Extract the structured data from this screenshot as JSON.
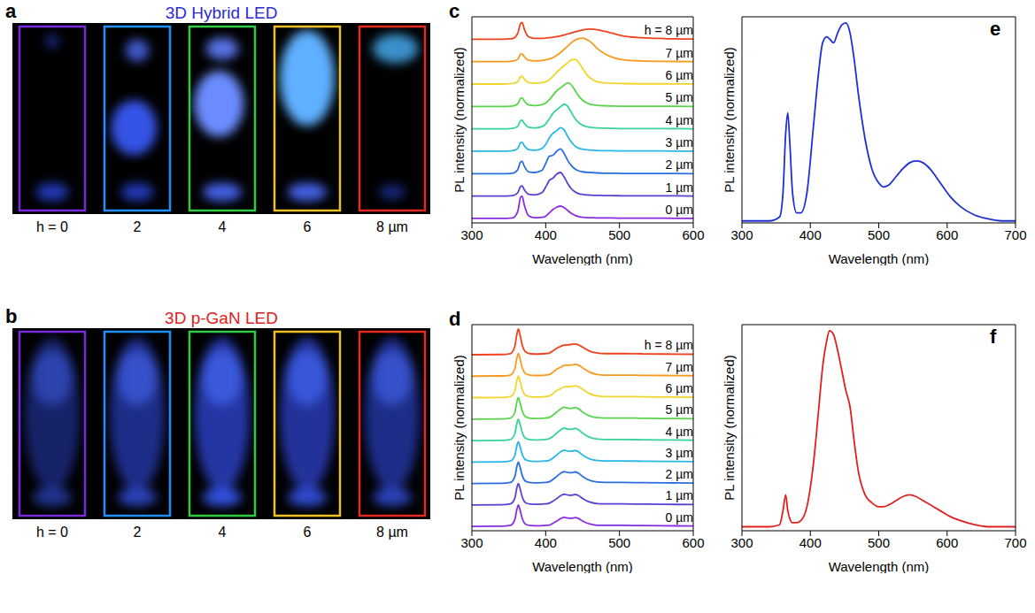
{
  "images": [
    {
      "panel_label": "a",
      "title": "3D Hybrid LED",
      "color": "#2b2bd6",
      "colors": [
        "#7a2be0",
        "#1e90ff",
        "#2ecc40",
        "#f0c020",
        "#e8281e"
      ],
      "labels": [
        "h = 0",
        "2",
        "4",
        "6",
        "8 µm"
      ]
    },
    {
      "panel_label": "b",
      "title": "3D p-GaN LED",
      "color": "#e0201e",
      "colors": [
        "#7a2be0",
        "#1e90ff",
        "#2ecc40",
        "#f0c020",
        "#e8281e"
      ],
      "labels": [
        "h = 0",
        "2",
        "4",
        "6",
        "8 µm"
      ]
    }
  ],
  "chart_data": [
    {
      "panel_label": "c",
      "type": "line",
      "x_label": "Wavelength (nm)",
      "y_label": "PL intensity (normalized)",
      "xlim": [
        300,
        600
      ],
      "xticks": [
        300,
        400,
        500,
        600
      ],
      "ylim": [
        -0.2,
        9.0
      ],
      "tick_labels": "x",
      "x": [
        300,
        340,
        355,
        362,
        366,
        368,
        371,
        377,
        385,
        395,
        400,
        405,
        410,
        415,
        420,
        425,
        430,
        435,
        440,
        445,
        450,
        455,
        460,
        465,
        470,
        480,
        490,
        505,
        530,
        560,
        600
      ],
      "series": [
        {
          "name": "0 µm",
          "color": "#8a2be2",
          "values": [
            0,
            0,
            0.02,
            0.3,
            0.95,
            1.0,
            0.6,
            0.12,
            0.03,
            0.05,
            0.1,
            0.25,
            0.4,
            0.5,
            0.55,
            0.48,
            0.35,
            0.22,
            0.13,
            0.08,
            0.05,
            0.04,
            0.03,
            0.03,
            0.02,
            0.02,
            0.02,
            0.01,
            0.01,
            0.01,
            0
          ]
        },
        {
          "name": "1 µm",
          "color": "#5b3fd1",
          "values": [
            1,
            1,
            1.02,
            1.14,
            1.43,
            1.45,
            1.28,
            1.08,
            1.05,
            1.15,
            1.4,
            1.7,
            1.8,
            1.98,
            2.05,
            1.85,
            1.55,
            1.32,
            1.18,
            1.1,
            1.07,
            1.05,
            1.04,
            1.03,
            1.03,
            1.02,
            1.02,
            1.01,
            1.01,
            1.01,
            1.0
          ]
        },
        {
          "name": "2 µm",
          "color": "#2a6fe0",
          "values": [
            2,
            2,
            2.02,
            2.17,
            2.52,
            2.55,
            2.33,
            2.08,
            2.05,
            2.15,
            2.45,
            2.78,
            2.82,
            3.0,
            3.1,
            2.9,
            2.58,
            2.35,
            2.2,
            2.12,
            2.08,
            2.06,
            2.05,
            2.04,
            2.03,
            2.02,
            2.02,
            2.01,
            2.01,
            2.01,
            2.0
          ]
        },
        {
          "name": "3 µm",
          "color": "#29b6e8",
          "values": [
            3,
            3,
            3.02,
            3.12,
            3.38,
            3.4,
            3.25,
            3.07,
            3.04,
            3.12,
            3.3,
            3.6,
            3.8,
            3.92,
            4.05,
            3.95,
            3.65,
            3.4,
            3.22,
            3.13,
            3.09,
            3.07,
            3.05,
            3.04,
            3.03,
            3.02,
            3.02,
            3.01,
            3.01,
            3.01,
            3.0
          ]
        },
        {
          "name": "4 µm",
          "color": "#37d39a",
          "values": [
            4,
            4,
            4.02,
            4.11,
            4.36,
            4.38,
            4.24,
            4.07,
            4.04,
            4.1,
            4.22,
            4.45,
            4.7,
            4.85,
            4.98,
            5.1,
            5.0,
            4.72,
            4.45,
            4.27,
            4.16,
            4.1,
            4.07,
            4.05,
            4.04,
            4.03,
            4.02,
            4.01,
            4.01,
            4.01,
            4.0
          ]
        },
        {
          "name": "5 µm",
          "color": "#59d44b",
          "values": [
            5,
            5,
            5.02,
            5.11,
            5.36,
            5.38,
            5.24,
            5.07,
            5.04,
            5.08,
            5.15,
            5.3,
            5.5,
            5.7,
            5.82,
            5.95,
            6.05,
            5.95,
            5.7,
            5.45,
            5.28,
            5.17,
            5.1,
            5.07,
            5.05,
            5.03,
            5.02,
            5.01,
            5.01,
            5.01,
            5.0
          ]
        },
        {
          "name": "6 µm",
          "color": "#f2d52a",
          "values": [
            6,
            6,
            6.02,
            6.1,
            6.33,
            6.35,
            6.22,
            6.06,
            6.03,
            6.06,
            6.1,
            6.2,
            6.35,
            6.52,
            6.68,
            6.82,
            6.95,
            7.08,
            7.1,
            6.95,
            6.7,
            6.45,
            6.28,
            6.17,
            6.1,
            6.05,
            6.03,
            6.02,
            6.01,
            6.01,
            6.0
          ]
        },
        {
          "name": "7 µm",
          "color": "#f79a1e",
          "values": [
            7,
            7,
            7.02,
            7.1,
            7.33,
            7.35,
            7.22,
            7.06,
            7.03,
            7.05,
            7.08,
            7.12,
            7.18,
            7.28,
            7.4,
            7.55,
            7.7,
            7.85,
            7.97,
            8.03,
            8.05,
            8.0,
            7.9,
            7.75,
            7.58,
            7.35,
            7.2,
            7.08,
            7.03,
            7.01,
            7.0
          ]
        },
        {
          "name": "h = 8 µm",
          "color": "#f0421e",
          "values": [
            8,
            8,
            8.03,
            8.25,
            8.7,
            8.75,
            8.45,
            8.1,
            8.04,
            8.04,
            8.05,
            8.07,
            8.09,
            8.12,
            8.15,
            8.19,
            8.23,
            8.28,
            8.33,
            8.37,
            8.41,
            8.44,
            8.45,
            8.44,
            8.42,
            8.35,
            8.27,
            8.15,
            8.07,
            8.03,
            8.01
          ]
        }
      ]
    },
    {
      "panel_label": "d",
      "type": "line",
      "x_label": "Wavelength (nm)",
      "y_label": "PL intensity (normalized)",
      "xlim": [
        300,
        600
      ],
      "xticks": [
        300,
        400,
        500,
        600
      ],
      "ylim": [
        -0.2,
        9.4
      ],
      "tick_labels": "x",
      "x": [
        300,
        340,
        352,
        358,
        361,
        363,
        365,
        368,
        373,
        380,
        390,
        400,
        405,
        410,
        415,
        420,
        425,
        430,
        435,
        440,
        445,
        450,
        455,
        460,
        470,
        480,
        490,
        505,
        530,
        560,
        600
      ],
      "series": [
        {
          "name": "0 µm",
          "color": "#8a2be2",
          "values": [
            0,
            0.01,
            0.05,
            0.3,
            0.8,
            1.0,
            0.8,
            0.4,
            0.1,
            0.04,
            0.03,
            0.05,
            0.06,
            0.15,
            0.25,
            0.36,
            0.42,
            0.39,
            0.38,
            0.41,
            0.36,
            0.25,
            0.17,
            0.11,
            0.05,
            0.05,
            0.05,
            0.05,
            0.04,
            0.03,
            0.02
          ]
        },
        {
          "name": "1 µm",
          "color": "#5b3fd1",
          "values": [
            1,
            1.01,
            1.05,
            1.3,
            1.8,
            2.0,
            1.8,
            1.4,
            1.1,
            1.04,
            1.03,
            1.05,
            1.08,
            1.18,
            1.3,
            1.43,
            1.5,
            1.46,
            1.45,
            1.49,
            1.43,
            1.3,
            1.2,
            1.13,
            1.06,
            1.05,
            1.05,
            1.05,
            1.04,
            1.03,
            1.02
          ]
        },
        {
          "name": "2 µm",
          "color": "#2a6fe0",
          "values": [
            2,
            2.01,
            2.05,
            2.3,
            2.8,
            3.0,
            2.8,
            2.4,
            2.1,
            2.04,
            2.03,
            2.05,
            2.08,
            2.19,
            2.33,
            2.47,
            2.55,
            2.51,
            2.5,
            2.54,
            2.47,
            2.33,
            2.22,
            2.14,
            2.07,
            2.05,
            2.05,
            2.05,
            2.04,
            2.03,
            2.02
          ]
        },
        {
          "name": "3 µm",
          "color": "#29b6e8",
          "values": [
            3,
            3.01,
            3.05,
            3.29,
            3.76,
            3.95,
            3.76,
            3.38,
            3.1,
            3.04,
            3.03,
            3.05,
            3.08,
            3.19,
            3.33,
            3.47,
            3.55,
            3.51,
            3.5,
            3.54,
            3.47,
            3.33,
            3.22,
            3.14,
            3.07,
            3.05,
            3.05,
            3.05,
            3.04,
            3.03,
            3.02
          ]
        },
        {
          "name": "4 µm",
          "color": "#37d39a",
          "values": [
            4,
            4.01,
            4.05,
            4.3,
            4.8,
            5.0,
            4.8,
            4.4,
            4.1,
            4.04,
            4.03,
            4.05,
            4.09,
            4.2,
            4.35,
            4.49,
            4.58,
            4.53,
            4.52,
            4.57,
            4.49,
            4.35,
            4.23,
            4.15,
            4.07,
            4.05,
            4.05,
            4.05,
            4.04,
            4.03,
            4.02
          ]
        },
        {
          "name": "5 µm",
          "color": "#59d44b",
          "values": [
            5,
            5.01,
            5.05,
            5.3,
            5.8,
            6.0,
            5.8,
            5.4,
            5.1,
            5.04,
            5.03,
            5.05,
            5.08,
            5.19,
            5.33,
            5.47,
            5.55,
            5.51,
            5.5,
            5.54,
            5.47,
            5.33,
            5.22,
            5.14,
            5.07,
            5.05,
            5.05,
            5.05,
            5.04,
            5.03,
            5.02
          ]
        },
        {
          "name": "6 µm",
          "color": "#f2d52a",
          "values": [
            6,
            6.01,
            6.05,
            6.3,
            6.8,
            7.0,
            6.8,
            6.4,
            6.1,
            6.04,
            6.03,
            6.05,
            6.08,
            6.19,
            6.33,
            6.41,
            6.5,
            6.51,
            6.52,
            6.55,
            6.5,
            6.39,
            6.28,
            6.18,
            6.08,
            6.05,
            6.05,
            6.05,
            6.04,
            6.03,
            6.02
          ]
        },
        {
          "name": "7 µm",
          "color": "#f79a1e",
          "values": [
            7,
            7.01,
            7.05,
            7.32,
            7.84,
            8.05,
            7.84,
            7.42,
            7.11,
            7.04,
            7.03,
            7.05,
            7.08,
            7.19,
            7.33,
            7.41,
            7.5,
            7.51,
            7.52,
            7.55,
            7.5,
            7.39,
            7.28,
            7.18,
            7.08,
            7.05,
            7.05,
            7.05,
            7.04,
            7.03,
            7.02
          ]
        },
        {
          "name": "h = 8 µm",
          "color": "#f0421e",
          "values": [
            8,
            8.01,
            8.05,
            8.36,
            8.96,
            9.2,
            8.96,
            8.48,
            8.12,
            8.04,
            8.03,
            8.05,
            8.08,
            8.18,
            8.3,
            8.38,
            8.45,
            8.46,
            8.48,
            8.5,
            8.45,
            8.35,
            8.25,
            8.16,
            8.08,
            8.05,
            8.05,
            8.05,
            8.04,
            8.03,
            8.02
          ]
        }
      ]
    },
    {
      "panel_label": "e",
      "type": "line",
      "x_label": "Wavelength (nm)",
      "y_label": "PL intensity (normalized)",
      "xlim": [
        300,
        700
      ],
      "xticks": [
        300,
        400,
        500,
        600,
        700
      ],
      "ylim": [
        0,
        1.03
      ],
      "tick_labels": "x",
      "x": [
        300,
        340,
        355,
        360,
        364,
        367,
        370,
        374,
        380,
        386,
        395,
        405,
        412,
        418,
        424,
        428,
        434,
        440,
        446,
        452,
        458,
        464,
        470,
        480,
        490,
        500,
        507,
        515,
        525,
        535,
        545,
        555,
        565,
        575,
        590,
        605,
        620,
        640,
        660,
        680,
        700
      ],
      "series": [
        {
          "color": "#1f2fd8",
          "values": [
            0.01,
            0.01,
            0.03,
            0.15,
            0.45,
            0.55,
            0.4,
            0.15,
            0.05,
            0.05,
            0.15,
            0.5,
            0.75,
            0.9,
            0.93,
            0.92,
            0.9,
            0.95,
            0.99,
            1.0,
            0.95,
            0.82,
            0.65,
            0.42,
            0.27,
            0.2,
            0.18,
            0.19,
            0.23,
            0.27,
            0.3,
            0.31,
            0.3,
            0.27,
            0.2,
            0.13,
            0.08,
            0.04,
            0.02,
            0.01,
            0.01
          ]
        }
      ]
    },
    {
      "panel_label": "f",
      "type": "line",
      "x_label": "Wavelength (nm)",
      "y_label": "PL intensity (normalized)",
      "xlim": [
        300,
        700
      ],
      "xticks": [
        300,
        400,
        500,
        600,
        700
      ],
      "ylim": [
        0,
        1.03
      ],
      "tick_labels": "x",
      "x": [
        300,
        340,
        355,
        360,
        364,
        367,
        370,
        374,
        380,
        386,
        395,
        405,
        412,
        418,
        424,
        428,
        434,
        440,
        446,
        452,
        458,
        464,
        470,
        480,
        490,
        500,
        507,
        515,
        525,
        535,
        545,
        555,
        565,
        575,
        590,
        605,
        620,
        640,
        660,
        680,
        700
      ],
      "series": [
        {
          "color": "#e0201e",
          "values": [
            0.02,
            0.02,
            0.03,
            0.1,
            0.18,
            0.1,
            0.06,
            0.04,
            0.04,
            0.05,
            0.12,
            0.35,
            0.6,
            0.82,
            0.95,
            1.0,
            0.98,
            0.9,
            0.8,
            0.7,
            0.62,
            0.45,
            0.3,
            0.18,
            0.14,
            0.12,
            0.12,
            0.13,
            0.15,
            0.17,
            0.18,
            0.17,
            0.15,
            0.13,
            0.1,
            0.07,
            0.05,
            0.03,
            0.02,
            0.02,
            0.02
          ]
        }
      ]
    }
  ]
}
